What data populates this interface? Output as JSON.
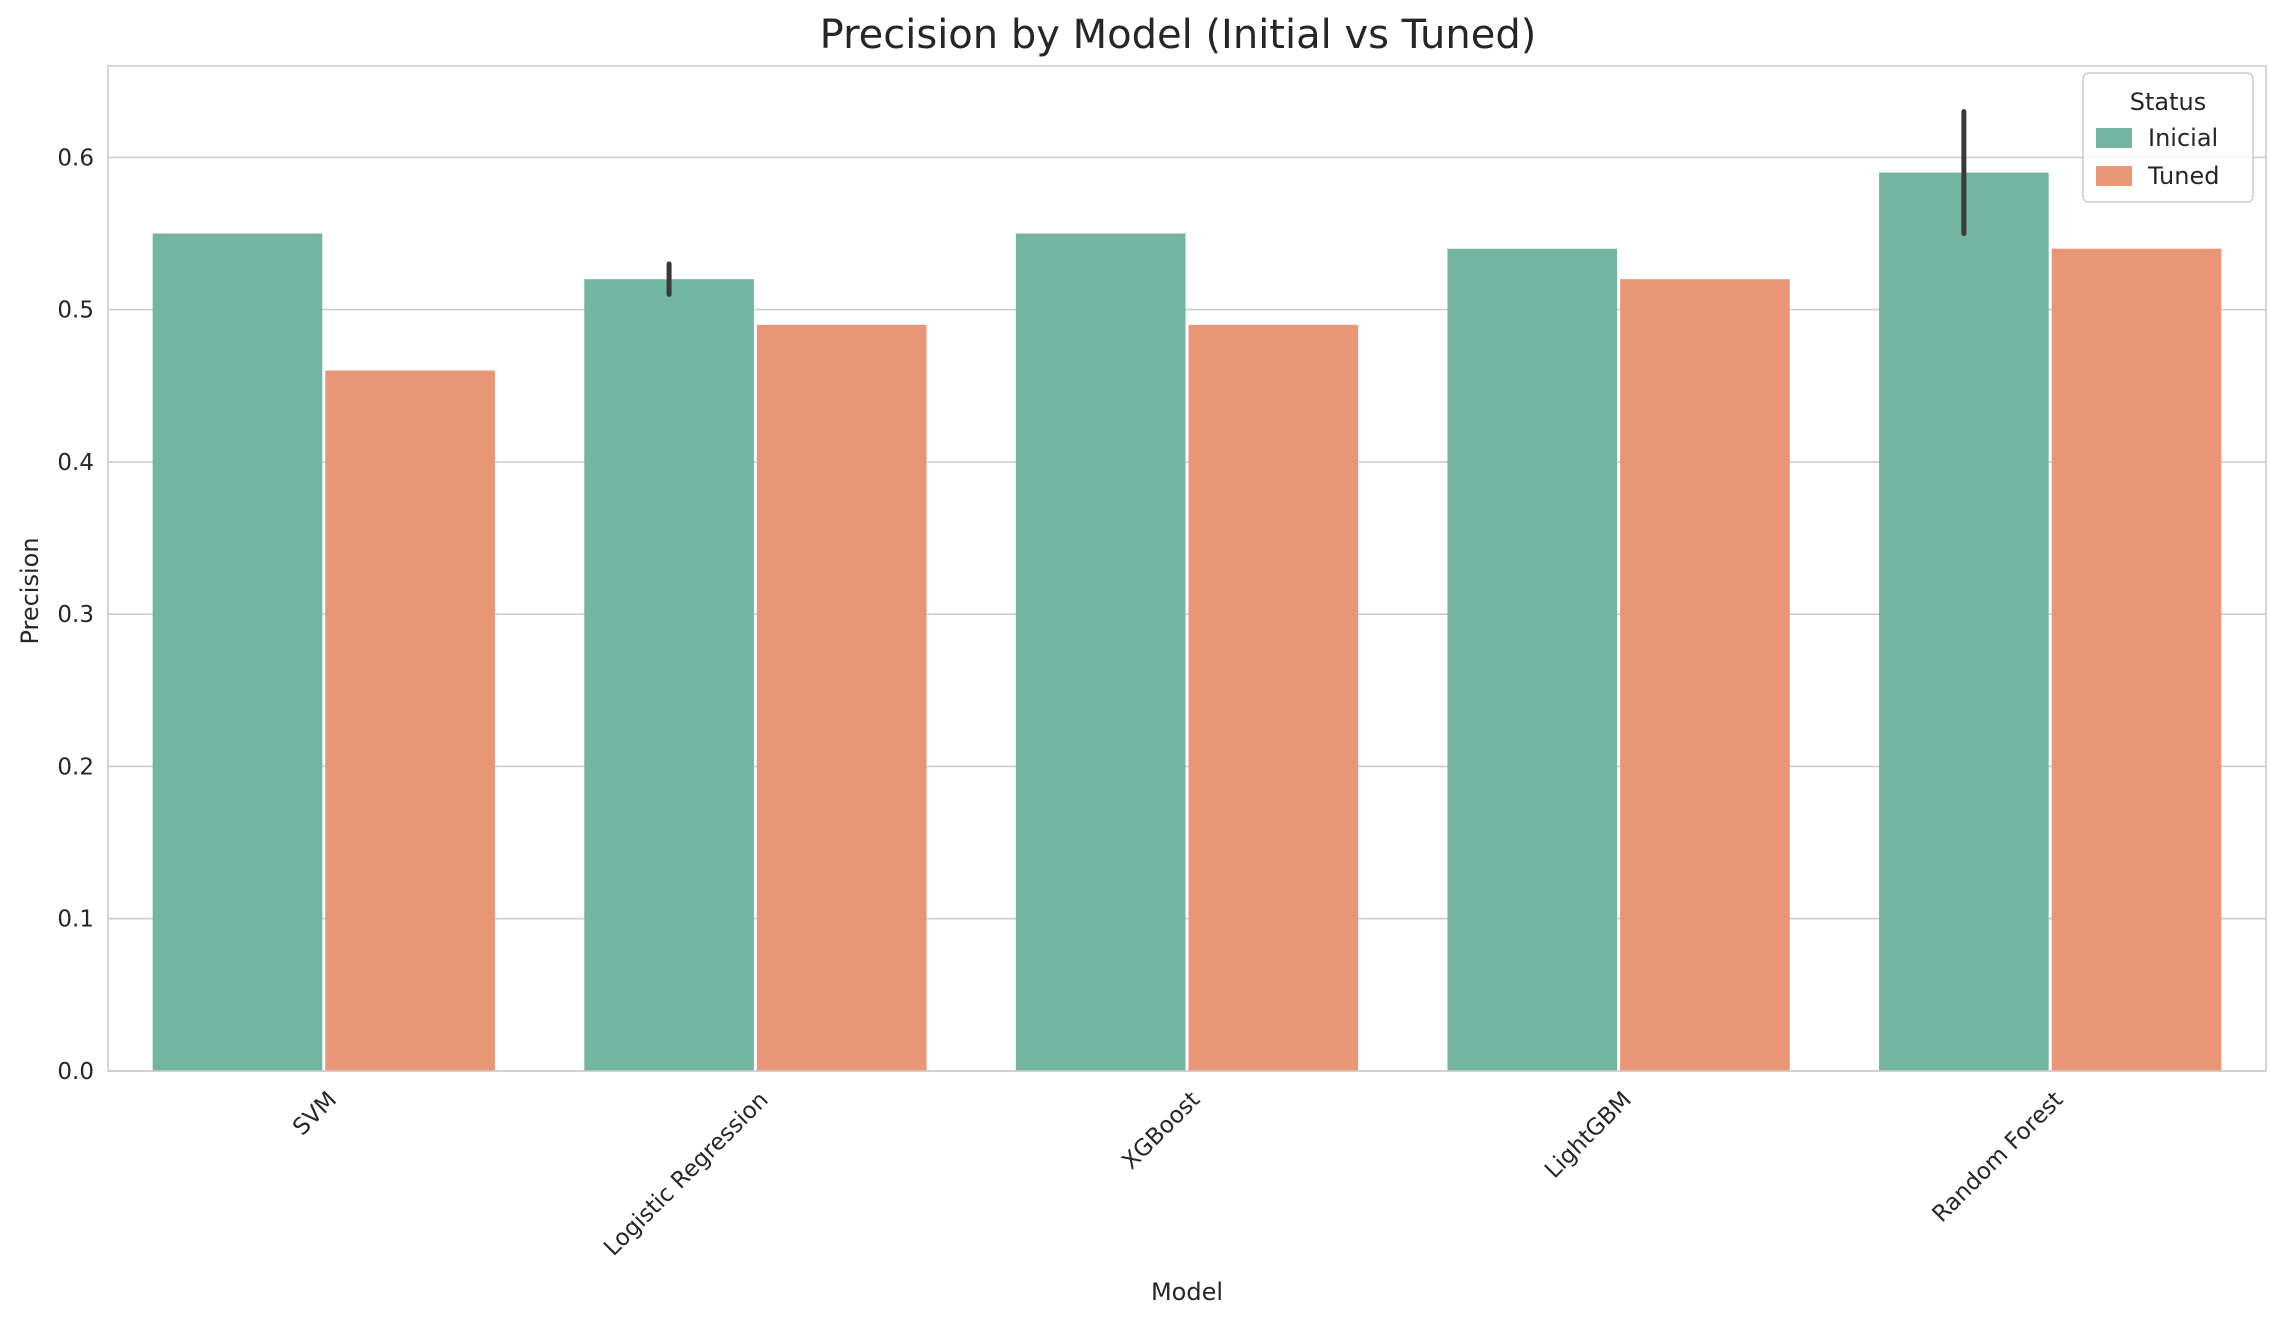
{
  "chart_data": {
    "type": "bar",
    "title": "Precision by Model (Initial vs Tuned)",
    "xlabel": "Model",
    "ylabel": "Precision",
    "categories": [
      "SVM",
      "Logistic Regression",
      "XGBoost",
      "LightGBM",
      "Random Forest"
    ],
    "series": [
      {
        "name": "Inicial",
        "color": "#73b5a0",
        "values": [
          0.55,
          0.52,
          0.55,
          0.54,
          0.59
        ],
        "error_bars": [
          null,
          [
            0.51,
            0.53
          ],
          null,
          null,
          [
            0.55,
            0.63
          ]
        ]
      },
      {
        "name": "Tuned",
        "color": "#e89675",
        "values": [
          0.46,
          0.49,
          0.49,
          0.52,
          0.54
        ],
        "error_bars": [
          null,
          null,
          null,
          null,
          null
        ]
      }
    ],
    "ylim": [
      0,
      0.66
    ],
    "yticks": [
      0.0,
      0.1,
      0.2,
      0.3,
      0.4,
      0.5,
      0.6
    ],
    "ytick_labels": [
      "0.0",
      "0.1",
      "0.2",
      "0.3",
      "0.4",
      "0.5",
      "0.6"
    ],
    "grid": "y",
    "xtick_rotation_deg": 45,
    "legend": {
      "title": "Status",
      "placement": "top-right"
    },
    "error_bar_color": "#3a3a3a",
    "grid_color": "#cccccc",
    "spine_color": "#cccccc"
  }
}
